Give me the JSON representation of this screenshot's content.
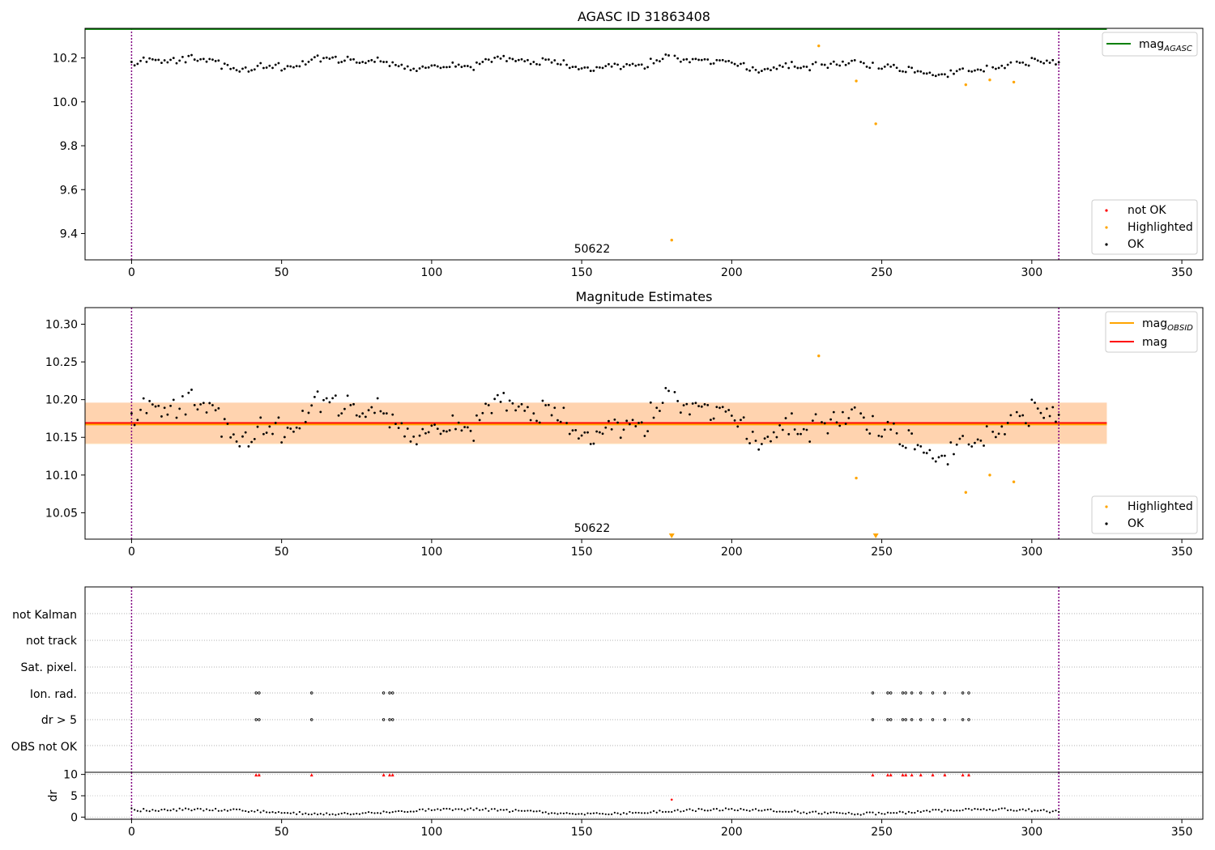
{
  "chart_data": [
    {
      "id": "mag",
      "type": "scatter",
      "title": "AGASC ID 31863408",
      "annotation": "50622",
      "xlim": [
        -15.5,
        357
      ],
      "ylim": [
        9.28,
        10.335
      ],
      "xticks": [
        0,
        50,
        100,
        150,
        200,
        250,
        300,
        350
      ],
      "yticks": [
        9.4,
        9.6,
        9.8,
        10.0,
        10.2
      ],
      "ytick_labels": [
        "9.4",
        "9.6",
        "9.8",
        "10.0",
        "10.2"
      ],
      "vlines": [
        0,
        309
      ],
      "mag_agasc": 10.332,
      "legend_lines": [
        {
          "label": "mag",
          "sub": "AGASC",
          "color": "#008000"
        }
      ],
      "legend_points": [
        {
          "label": "not OK",
          "color": "#ff0000"
        },
        {
          "label": "Highlighted",
          "color": "#ffa500"
        },
        {
          "label": "OK",
          "color": "#000000"
        }
      ],
      "highlighted": [
        [
          180,
          9.37
        ],
        [
          229,
          10.255
        ],
        [
          241.5,
          10.095
        ],
        [
          248,
          9.9
        ],
        [
          278,
          10.078
        ],
        [
          286,
          10.1
        ],
        [
          294,
          10.09
        ]
      ]
    },
    {
      "id": "estimates",
      "type": "scatter",
      "title": "Magnitude Estimates",
      "annotation": "50622",
      "xlim": [
        -15.5,
        357
      ],
      "ylim": [
        10.015,
        10.322
      ],
      "xticks": [
        0,
        50,
        100,
        150,
        200,
        250,
        300,
        350
      ],
      "yticks": [
        10.05,
        10.1,
        10.15,
        10.2,
        10.25,
        10.3
      ],
      "ytick_labels": [
        "10.05",
        "10.10",
        "10.15",
        "10.20",
        "10.25",
        "10.30"
      ],
      "vlines": [
        0,
        309
      ],
      "mag": 10.169,
      "mag_band": [
        10.142,
        10.196
      ],
      "mag_obsid": 10.167,
      "mag_obsid_band": [
        10.141,
        10.196
      ],
      "legend_lines": [
        {
          "label": "mag",
          "sub": "OBSID",
          "color": "#ffa500"
        },
        {
          "label": "mag",
          "sub": "",
          "color": "#ff0000"
        }
      ],
      "legend_points": [
        {
          "label": "Highlighted",
          "color": "#ffa500"
        },
        {
          "label": "OK",
          "color": "#000000"
        }
      ],
      "highlighted": [
        [
          229,
          10.258
        ],
        [
          241.5,
          10.096
        ],
        [
          278,
          10.077
        ],
        [
          286,
          10.1
        ],
        [
          294,
          10.091
        ]
      ],
      "offscale_markers": [
        180,
        248
      ]
    },
    {
      "id": "flags",
      "type": "scatter",
      "xlim": [
        -15.5,
        357
      ],
      "xticks": [
        0,
        50,
        100,
        150,
        200,
        250,
        300,
        350
      ],
      "vlines": [
        0,
        309
      ],
      "flag_labels": [
        "not Kalman",
        "not track",
        "Sat. pixel.",
        "Ion. rad.",
        "dr > 5",
        "OBS not OK"
      ],
      "flag_times": [
        41.5,
        42.5,
        60,
        84,
        86,
        87,
        247,
        252,
        253,
        257,
        258,
        260,
        263,
        267,
        271,
        277,
        279
      ]
    },
    {
      "id": "dr",
      "type": "scatter",
      "ylabel": "dr",
      "xlim": [
        -15.5,
        357
      ],
      "ylim": [
        -0.5,
        10.5
      ],
      "xticks": [
        0,
        50,
        100,
        150,
        200,
        250,
        300,
        350
      ],
      "yticks": [
        0,
        5,
        10
      ],
      "ytick_labels": [
        "0",
        "5",
        "10"
      ],
      "vlines": [
        0,
        309
      ],
      "clipped": [
        41.5,
        42.5,
        60,
        84,
        86,
        87,
        247,
        252,
        253,
        257,
        258,
        260,
        263,
        267,
        271,
        277,
        279
      ],
      "not_ok": [
        [
          180,
          4.1
        ]
      ]
    }
  ]
}
